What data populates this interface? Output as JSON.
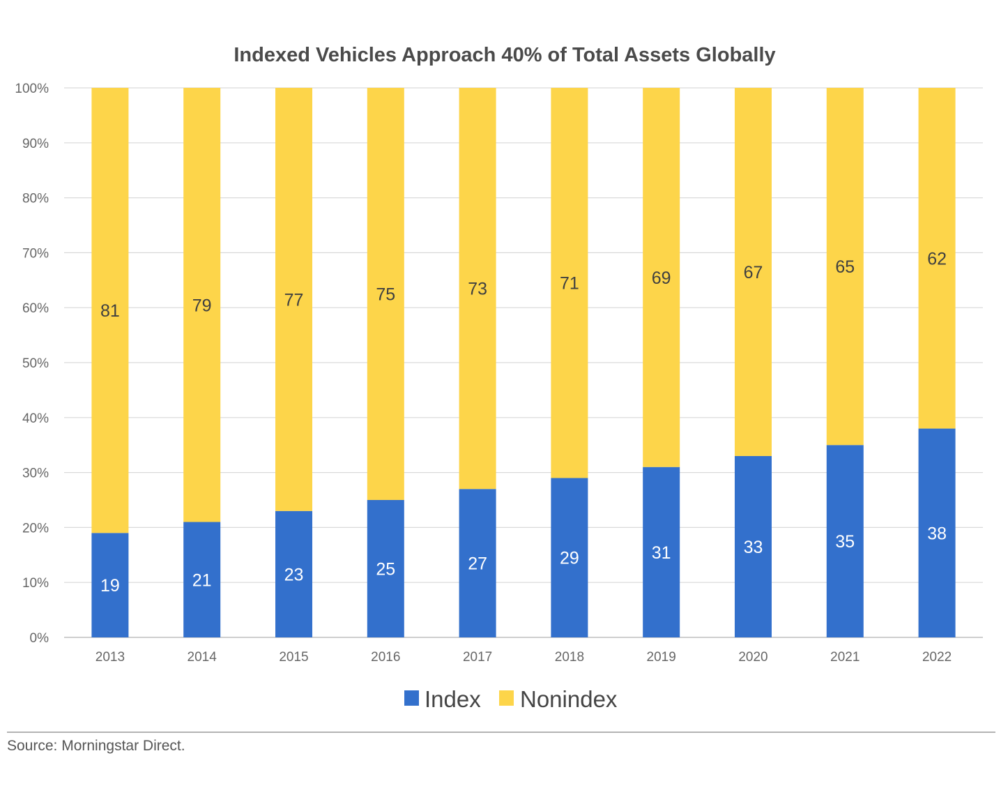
{
  "chart_data": {
    "type": "bar",
    "stacked": true,
    "title": "Indexed Vehicles Approach 40% of Total Assets Globally",
    "categories": [
      "2013",
      "2014",
      "2015",
      "2016",
      "2017",
      "2018",
      "2019",
      "2020",
      "2021",
      "2022"
    ],
    "series": [
      {
        "name": "Index",
        "color": "#3370cc",
        "label_color": "#ffffff",
        "values": [
          19,
          21,
          23,
          25,
          27,
          29,
          31,
          33,
          35,
          38
        ]
      },
      {
        "name": "Nonindex",
        "color": "#fdd54a",
        "label_color": "#404040",
        "values": [
          81,
          79,
          77,
          75,
          73,
          71,
          69,
          67,
          65,
          62
        ]
      }
    ],
    "ylim": [
      0,
      100
    ],
    "y_ticks": [
      "0%",
      "10%",
      "20%",
      "30%",
      "40%",
      "50%",
      "60%",
      "70%",
      "80%",
      "90%",
      "100%"
    ],
    "xlabel": "",
    "ylabel": "",
    "grid": true,
    "legend_position": "bottom-center"
  },
  "source": "Source: Morningstar Direct."
}
